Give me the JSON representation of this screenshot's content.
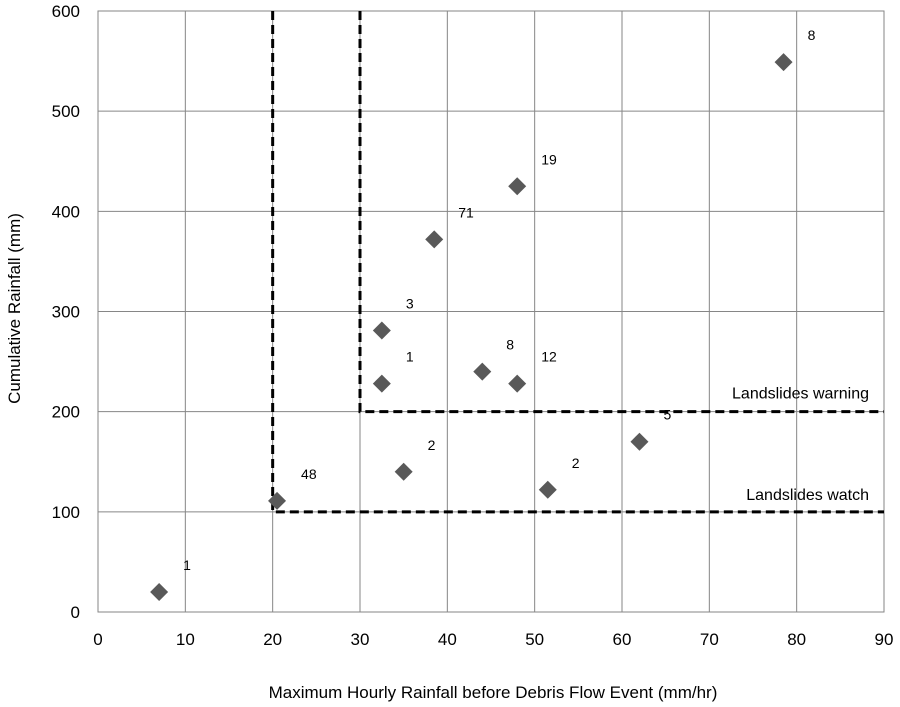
{
  "chart_data": {
    "type": "scatter",
    "xlabel": "Maximum Hourly Rainfall before Debris Flow Event (mm/hr)",
    "ylabel": "Cumulative Rainfall (mm)",
    "xlim": [
      0,
      90
    ],
    "ylim": [
      0,
      600
    ],
    "xticks": [
      0,
      10,
      20,
      30,
      40,
      50,
      60,
      70,
      80,
      90
    ],
    "yticks": [
      0,
      100,
      200,
      300,
      400,
      500,
      600
    ],
    "grid": true,
    "marker": "diamond",
    "marker_color": "#595959",
    "points": [
      {
        "x": 7,
        "y": 20,
        "label": "1"
      },
      {
        "x": 20.5,
        "y": 111,
        "label": "48"
      },
      {
        "x": 35,
        "y": 140,
        "label": "2"
      },
      {
        "x": 32.5,
        "y": 228,
        "label": "1"
      },
      {
        "x": 32.5,
        "y": 281,
        "label": "3"
      },
      {
        "x": 38.5,
        "y": 372,
        "label": "71"
      },
      {
        "x": 44,
        "y": 240,
        "label": "8"
      },
      {
        "x": 48,
        "y": 228,
        "label": "12"
      },
      {
        "x": 48,
        "y": 425,
        "label": "19"
      },
      {
        "x": 51.5,
        "y": 122,
        "label": "2"
      },
      {
        "x": 62,
        "y": 170,
        "label": "5"
      },
      {
        "x": 78.5,
        "y": 549,
        "label": "8"
      }
    ],
    "threshold_lines": [
      {
        "name": "Landslides watch",
        "x_min": 20,
        "y_min": 100
      },
      {
        "name": "Landslides warning",
        "x_min": 30,
        "y_min": 200
      }
    ]
  }
}
